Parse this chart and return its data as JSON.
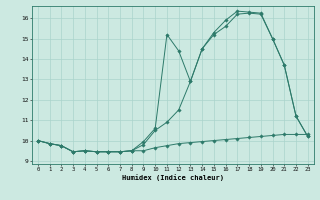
{
  "xlabel": "Humidex (Indice chaleur)",
  "xlim": [
    -0.5,
    23.5
  ],
  "ylim": [
    8.85,
    16.6
  ],
  "xticks": [
    0,
    1,
    2,
    3,
    4,
    5,
    6,
    7,
    8,
    9,
    10,
    11,
    12,
    13,
    14,
    15,
    16,
    17,
    18,
    19,
    20,
    21,
    22,
    23
  ],
  "yticks": [
    9,
    10,
    11,
    12,
    13,
    14,
    15,
    16
  ],
  "bg_color": "#cce9e1",
  "line_color": "#2d7a6a",
  "grid_color": "#aad4cc",
  "line1_x": [
    0,
    1,
    2,
    3,
    4,
    5,
    6,
    7,
    8,
    9,
    10,
    11,
    12,
    13,
    14,
    15,
    16,
    17,
    18,
    19,
    20,
    21,
    22,
    23
  ],
  "line1_y": [
    10.0,
    9.85,
    9.75,
    9.45,
    9.5,
    9.45,
    9.45,
    9.45,
    9.5,
    9.5,
    9.65,
    9.75,
    9.85,
    9.9,
    9.95,
    10.0,
    10.05,
    10.1,
    10.15,
    10.2,
    10.25,
    10.3,
    10.3,
    10.3
  ],
  "line2_x": [
    0,
    1,
    2,
    3,
    4,
    5,
    6,
    7,
    8,
    9,
    10,
    11,
    12,
    13,
    14,
    15,
    16,
    17,
    18,
    19,
    20,
    21,
    22,
    23
  ],
  "line2_y": [
    10.0,
    9.85,
    9.75,
    9.45,
    9.5,
    9.45,
    9.45,
    9.45,
    9.5,
    9.8,
    10.5,
    10.9,
    11.5,
    12.9,
    14.5,
    15.2,
    15.6,
    16.2,
    16.25,
    16.2,
    15.0,
    13.7,
    11.2,
    10.2
  ],
  "line3_x": [
    0,
    1,
    2,
    3,
    4,
    5,
    6,
    7,
    8,
    9,
    10,
    11,
    12,
    13,
    14,
    15,
    16,
    17,
    18,
    19,
    20,
    21,
    22,
    23
  ],
  "line3_y": [
    10.0,
    9.85,
    9.75,
    9.45,
    9.5,
    9.45,
    9.45,
    9.45,
    9.5,
    9.95,
    10.6,
    15.2,
    14.4,
    12.9,
    14.5,
    15.3,
    15.9,
    16.35,
    16.3,
    16.25,
    15.0,
    13.7,
    11.2,
    10.2
  ]
}
